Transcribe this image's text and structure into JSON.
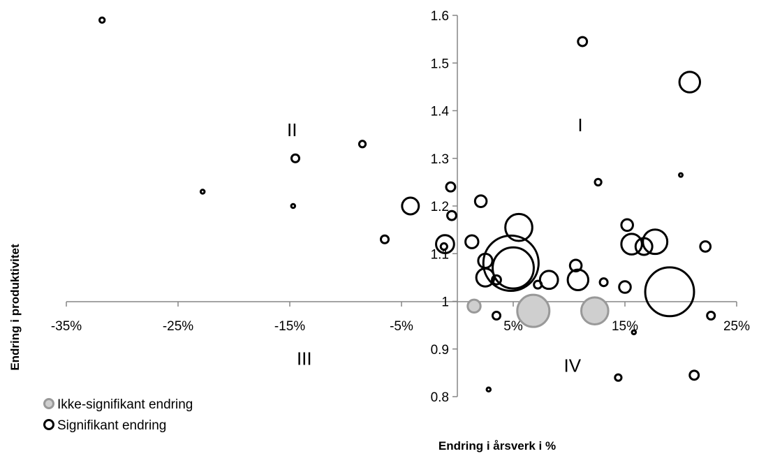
{
  "chart_data": {
    "type": "bubble",
    "title": "",
    "xlabel": "Endring i årsverk i %",
    "ylabel": "Endring i produktivitet",
    "xlim": [
      -35,
      25
    ],
    "ylim": [
      0.8,
      1.6
    ],
    "x_ticks": [
      "-35%",
      "-25%",
      "-15%",
      "-5%",
      "5%",
      "15%",
      "25%"
    ],
    "y_ticks": [
      "0.8",
      "0.9",
      "1",
      "1.1",
      "1.2",
      "1.3",
      "1.4",
      "1.5",
      "1.6"
    ],
    "grid": false,
    "legend_position": "bottom-left",
    "quadrant_labels": [
      {
        "text": "I",
        "x": 11,
        "y": 1.37
      },
      {
        "text": "II",
        "x": -14.8,
        "y": 1.36
      },
      {
        "text": "III",
        "x": -13.7,
        "y": 0.88
      },
      {
        "text": "IV",
        "x": 10.3,
        "y": 0.865
      }
    ],
    "series": [
      {
        "name": "Ikke-signifikant endring",
        "marker": "filled",
        "color": "#999999",
        "fill": "#cfcfcf",
        "points": [
          {
            "x": 1.5,
            "y": 0.99,
            "size": 1.0
          },
          {
            "x": 6.8,
            "y": 0.98,
            "size": 2.5
          },
          {
            "x": 12.3,
            "y": 0.98,
            "size": 2.1
          }
        ]
      },
      {
        "name": "Signifikant endring",
        "marker": "hollow",
        "color": "#000000",
        "points": [
          {
            "x": -31.8,
            "y": 1.59,
            "size": 0.4
          },
          {
            "x": -22.8,
            "y": 1.23,
            "size": 0.3
          },
          {
            "x": -14.7,
            "y": 1.2,
            "size": 0.3
          },
          {
            "x": -14.5,
            "y": 1.3,
            "size": 0.6
          },
          {
            "x": -8.5,
            "y": 1.33,
            "size": 0.5
          },
          {
            "x": -6.5,
            "y": 1.13,
            "size": 0.6
          },
          {
            "x": -4.2,
            "y": 1.2,
            "size": 1.3
          },
          {
            "x": -1.1,
            "y": 1.12,
            "size": 1.4
          },
          {
            "x": -0.6,
            "y": 1.24,
            "size": 0.7
          },
          {
            "x": -0.5,
            "y": 1.18,
            "size": 0.7
          },
          {
            "x": -1.2,
            "y": 1.115,
            "size": 0.5
          },
          {
            "x": 1.3,
            "y": 1.125,
            "size": 1.0
          },
          {
            "x": 2.1,
            "y": 1.21,
            "size": 0.9
          },
          {
            "x": 2.5,
            "y": 1.085,
            "size": 1.1
          },
          {
            "x": 2.5,
            "y": 1.05,
            "size": 1.4
          },
          {
            "x": 3.5,
            "y": 0.97,
            "size": 0.6
          },
          {
            "x": 3.5,
            "y": 1.045,
            "size": 0.7
          },
          {
            "x": 2.8,
            "y": 0.815,
            "size": 0.3
          },
          {
            "x": 4.8,
            "y": 1.08,
            "size": 4.3
          },
          {
            "x": 5.0,
            "y": 1.07,
            "size": 3.2
          },
          {
            "x": 5.5,
            "y": 1.155,
            "size": 2.1
          },
          {
            "x": 7.2,
            "y": 1.035,
            "size": 0.6
          },
          {
            "x": 8.2,
            "y": 1.045,
            "size": 1.4
          },
          {
            "x": 10.6,
            "y": 1.075,
            "size": 0.9
          },
          {
            "x": 10.8,
            "y": 1.045,
            "size": 1.6
          },
          {
            "x": 11.2,
            "y": 1.545,
            "size": 0.7
          },
          {
            "x": 12.6,
            "y": 1.25,
            "size": 0.5
          },
          {
            "x": 13.1,
            "y": 1.04,
            "size": 0.6
          },
          {
            "x": 14.4,
            "y": 0.84,
            "size": 0.5
          },
          {
            "x": 15.0,
            "y": 1.03,
            "size": 0.9
          },
          {
            "x": 15.2,
            "y": 1.16,
            "size": 0.9
          },
          {
            "x": 15.6,
            "y": 1.12,
            "size": 1.6
          },
          {
            "x": 16.7,
            "y": 1.115,
            "size": 1.3
          },
          {
            "x": 17.7,
            "y": 1.125,
            "size": 1.9
          },
          {
            "x": 15.8,
            "y": 0.935,
            "size": 0.3
          },
          {
            "x": 19.0,
            "y": 1.02,
            "size": 3.8
          },
          {
            "x": 20.0,
            "y": 1.265,
            "size": 0.2
          },
          {
            "x": 20.8,
            "y": 1.46,
            "size": 1.6
          },
          {
            "x": 21.2,
            "y": 0.845,
            "size": 0.7
          },
          {
            "x": 22.2,
            "y": 1.115,
            "size": 0.8
          },
          {
            "x": 22.7,
            "y": 0.97,
            "size": 0.6
          }
        ]
      }
    ]
  }
}
